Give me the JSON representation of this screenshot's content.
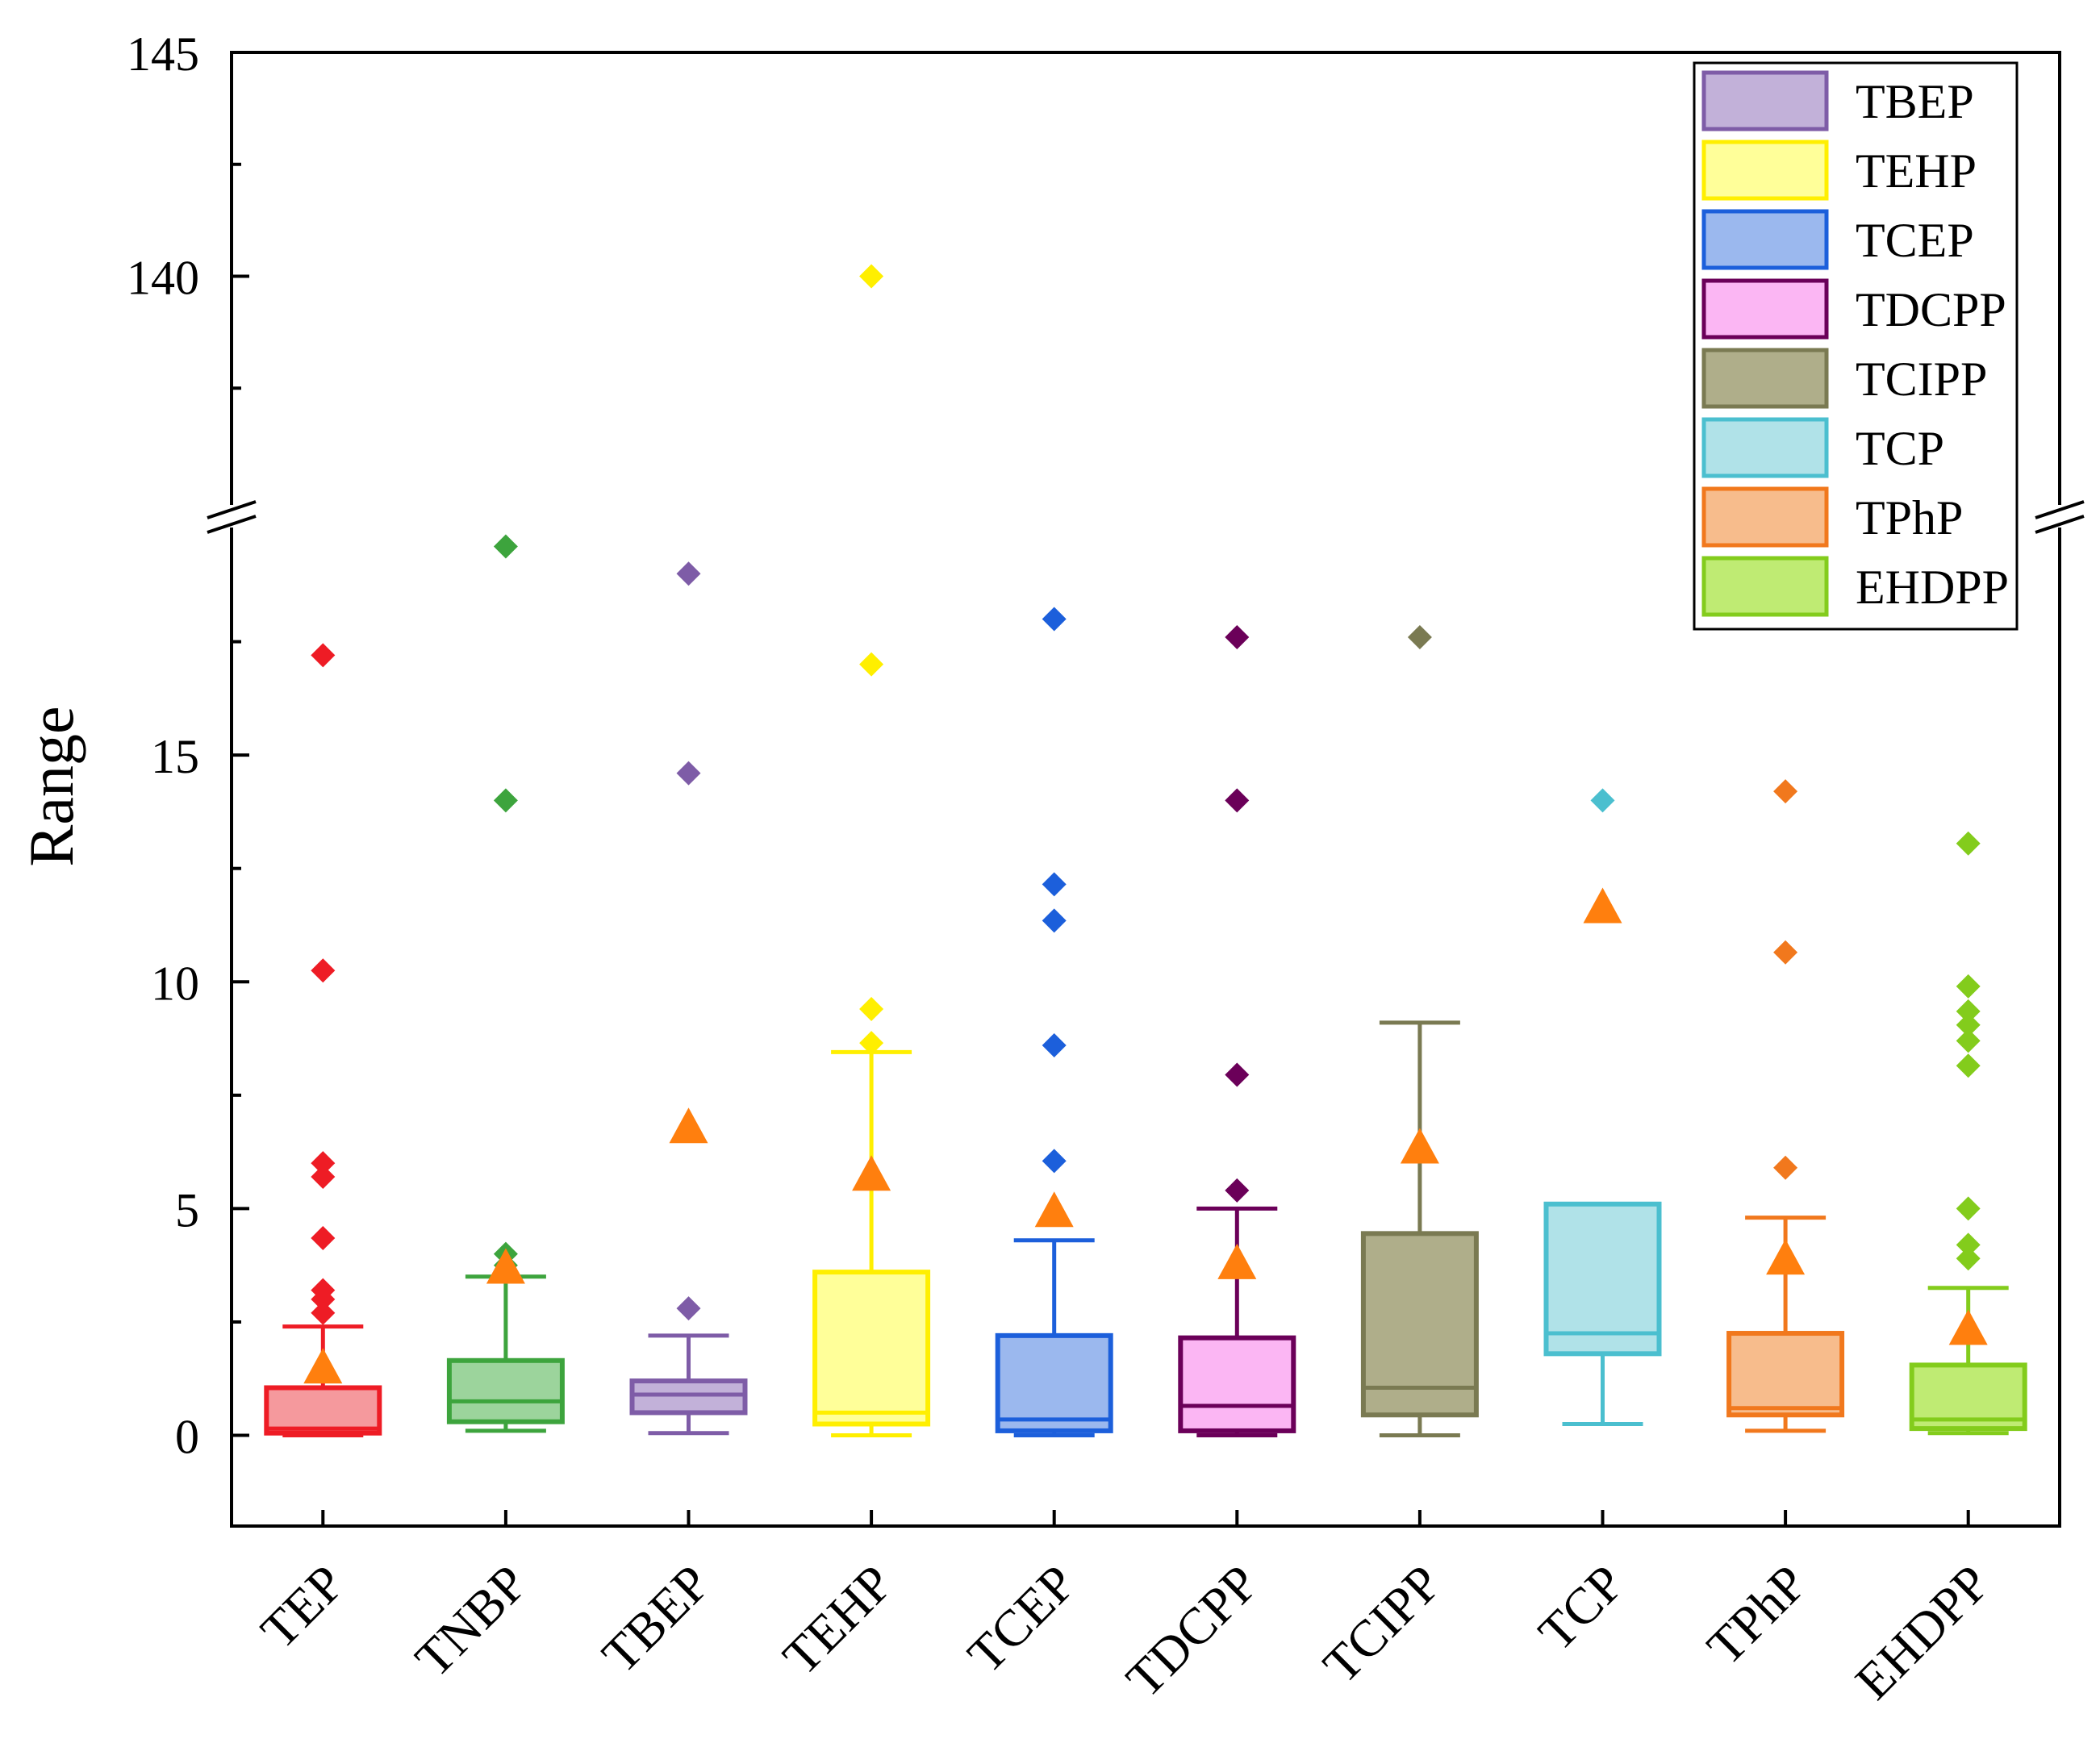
{
  "chart_data": {
    "type": "box",
    "ylabel": "Range",
    "xlabel": "",
    "categories": [
      "TEP",
      "TNBP",
      "TBEP",
      "TEHP",
      "TCEP",
      "TDCPP",
      "TCIPP",
      "TCP",
      "TPhP",
      "EHDPP"
    ],
    "y_axis": {
      "segments": [
        {
          "range": [
            -2,
            20
          ],
          "ticks": [
            0,
            5,
            10,
            15
          ]
        },
        {
          "range": [
            135,
            145
          ],
          "ticks": [
            140,
            145
          ]
        }
      ],
      "break_between": [
        20,
        135
      ]
    },
    "series": [
      {
        "name": "TEP",
        "color": "#ee1c25",
        "fill": "#f5999d",
        "q1": 0.05,
        "median": 0.15,
        "q3": 1.05,
        "whisker_low": 0.0,
        "whisker_high": 2.4,
        "mean": 1.5,
        "outliers": [
          2.7,
          3.0,
          3.2,
          4.35,
          5.7,
          6.0,
          10.25,
          17.2
        ]
      },
      {
        "name": "TNBP",
        "color": "#3da43d",
        "fill": "#9cd49c",
        "q1": 0.3,
        "median": 0.75,
        "q3": 1.65,
        "whisker_low": 0.1,
        "whisker_high": 3.5,
        "mean": 3.7,
        "outliers": [
          3.75,
          4.0,
          14.0,
          19.6
        ]
      },
      {
        "name": "TBEP",
        "color": "#7e5ca7",
        "fill": "#c2b1d9",
        "q1": 0.5,
        "median": 0.9,
        "q3": 1.2,
        "whisker_low": 0.05,
        "whisker_high": 2.2,
        "mean": 6.8,
        "outliers": [
          2.8,
          14.6,
          19.0
        ]
      },
      {
        "name": "TEHP",
        "color": "#ffef00",
        "fill": "#ffff99",
        "q1": 0.25,
        "median": 0.5,
        "q3": 3.6,
        "whisker_low": 0.0,
        "whisker_high": 8.45,
        "mean": 5.75,
        "outliers": [
          8.65,
          9.4,
          17.0,
          140.0
        ]
      },
      {
        "name": "TCEP",
        "color": "#1c5fdb",
        "fill": "#9bb8ee",
        "q1": 0.1,
        "median": 0.35,
        "q3": 2.2,
        "whisker_low": 0.0,
        "whisker_high": 4.3,
        "mean": 4.95,
        "outliers": [
          6.05,
          8.6,
          11.35,
          12.15,
          18.0
        ]
      },
      {
        "name": "TDCPP",
        "color": "#6b0059",
        "fill": "#fbb6f3",
        "q1": 0.1,
        "median": 0.65,
        "q3": 2.15,
        "whisker_low": 0.0,
        "whisker_high": 5.0,
        "mean": 3.8,
        "outliers": [
          5.4,
          7.95,
          14.0,
          17.6
        ]
      },
      {
        "name": "TCIPP",
        "color": "#7a7a52",
        "fill": "#afae8a",
        "q1": 0.45,
        "median": 1.05,
        "q3": 4.45,
        "whisker_low": 0.0,
        "whisker_high": 9.1,
        "mean": 6.35,
        "outliers": [
          17.6
        ]
      },
      {
        "name": "TCP",
        "color": "#4bbfcf",
        "fill": "#b0e2e8",
        "q1": 1.8,
        "median": 2.25,
        "q3": 5.1,
        "whisker_low": 0.25,
        "whisker_high": 5.1,
        "mean": 11.65,
        "outliers": [
          14.0
        ]
      },
      {
        "name": "TPhP",
        "color": "#f1781d",
        "fill": "#f7bc8c",
        "q1": 0.45,
        "median": 0.6,
        "q3": 2.25,
        "whisker_low": 0.1,
        "whisker_high": 4.8,
        "mean": 3.9,
        "outliers": [
          5.9,
          10.65,
          14.2
        ]
      },
      {
        "name": "EHDPP",
        "color": "#83cc1c",
        "fill": "#bfeb73",
        "q1": 0.15,
        "median": 0.35,
        "q3": 1.55,
        "whisker_low": 0.05,
        "whisker_high": 3.25,
        "mean": 2.35,
        "outliers": [
          3.9,
          4.2,
          5.0,
          8.15,
          8.7,
          9.05,
          9.35,
          9.9,
          13.05
        ]
      }
    ],
    "mean_marker": {
      "shape": "triangle",
      "color": "#ff7f0e"
    },
    "legend": {
      "position": "top-right",
      "entries": [
        {
          "label": "TBEP",
          "color": "#7e5ca7",
          "fill": "#c2b1d9"
        },
        {
          "label": "TEHP",
          "color": "#ffef00",
          "fill": "#ffff99"
        },
        {
          "label": "TCEP",
          "color": "#1c5fdb",
          "fill": "#9bb8ee"
        },
        {
          "label": "TDCPP",
          "color": "#6b0059",
          "fill": "#fbb6f3"
        },
        {
          "label": "TCIPP",
          "color": "#7a7a52",
          "fill": "#afae8a"
        },
        {
          "label": "TCP",
          "color": "#4bbfcf",
          "fill": "#b0e2e8"
        },
        {
          "label": "TPhP",
          "color": "#f1781d",
          "fill": "#f7bc8c"
        },
        {
          "label": "EHDPP",
          "color": "#83cc1c",
          "fill": "#bfeb73"
        }
      ]
    }
  }
}
